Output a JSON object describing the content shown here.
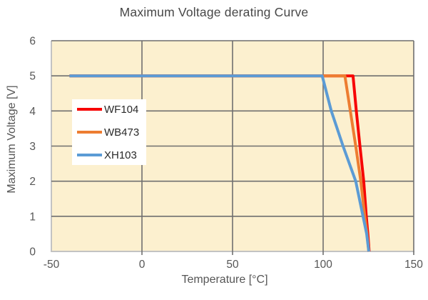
{
  "chart_data": {
    "type": "line",
    "title": "Maximum Voltage derating Curve",
    "xlabel": "Temperature [°C]",
    "ylabel": "Maximum Voltage [V]",
    "xlim": [
      -50,
      150
    ],
    "ylim": [
      0,
      6
    ],
    "x_ticks": [
      -50,
      0,
      50,
      100,
      150
    ],
    "y_ticks": [
      0,
      1,
      2,
      3,
      4,
      5,
      6
    ],
    "x_gridlines": [
      0,
      50,
      100,
      150
    ],
    "y_gridlines": [
      1,
      2,
      3,
      4,
      5,
      6
    ],
    "grid": true,
    "legend": {
      "position": "upper-left-inside",
      "labels": [
        "WF104",
        "WB473",
        "XH103"
      ]
    },
    "colors": {
      "plot_bg": "#fcf0cf",
      "grid": "#6f6f6f",
      "axis": "#c3c3c3",
      "tick_text": "#565656",
      "legend_bg": "#ffffff"
    },
    "series": [
      {
        "name": "WF104",
        "color": "#f70505",
        "points": [
          [
            -40,
            5
          ],
          [
            116.5,
            5
          ],
          [
            118.3,
            4
          ],
          [
            120.3,
            3
          ],
          [
            122.4,
            2
          ],
          [
            123.8,
            1
          ],
          [
            124.7,
            0.5
          ],
          [
            125.4,
            0
          ]
        ]
      },
      {
        "name": "WB473",
        "color": "#ed7d31",
        "points": [
          [
            -40,
            5
          ],
          [
            112,
            5
          ],
          [
            115,
            4
          ],
          [
            118,
            3
          ],
          [
            120.8,
            2
          ],
          [
            123,
            1
          ],
          [
            124.2,
            0.5
          ],
          [
            125.2,
            0
          ]
        ]
      },
      {
        "name": "XH103",
        "color": "#5b9bd5",
        "points": [
          [
            -40,
            5
          ],
          [
            99.5,
            5
          ],
          [
            104.5,
            4
          ],
          [
            111,
            3
          ],
          [
            118,
            2
          ],
          [
            122,
            1
          ],
          [
            124,
            0.5
          ],
          [
            125.2,
            0
          ]
        ]
      }
    ]
  }
}
